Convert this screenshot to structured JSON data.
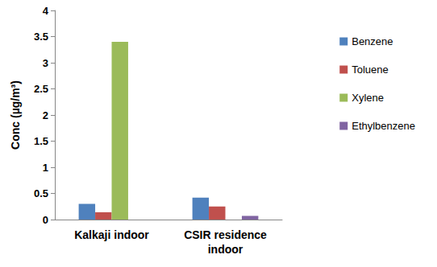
{
  "chart_data": {
    "type": "bar",
    "y_label": "Conc (µg/m³)",
    "categories": [
      "Kalkaji indoor",
      "CSIR residence\nindoor"
    ],
    "series": [
      {
        "name": "Benzene",
        "color": "#4f81bd",
        "values": [
          0.3,
          0.42
        ]
      },
      {
        "name": "Toluene",
        "color": "#c0504d",
        "values": [
          0.14,
          0.25
        ]
      },
      {
        "name": "Xylene",
        "color": "#9bbb59",
        "values": [
          3.4,
          null
        ]
      },
      {
        "name": "Ethylbenzene",
        "color": "#8064a2",
        "values": [
          null,
          0.07
        ]
      }
    ],
    "ylim": [
      0,
      4
    ],
    "yticks": [
      0,
      0.5,
      1,
      1.5,
      2,
      2.5,
      3,
      3.5,
      4
    ],
    "grid": false,
    "legend": "right"
  }
}
